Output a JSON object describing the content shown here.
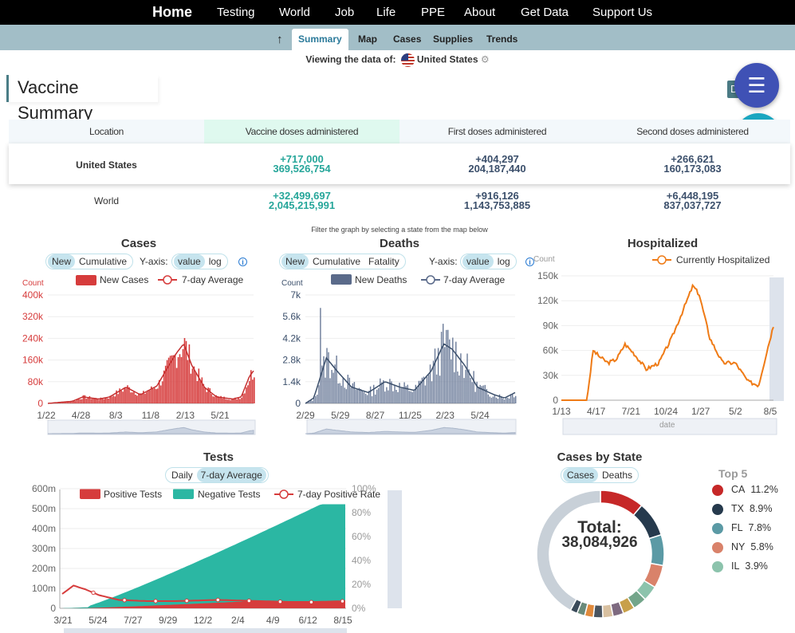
{
  "nav": {
    "home": "Home",
    "items": [
      "Testing",
      "World",
      "Job",
      "Life",
      "PPE",
      "About",
      "Get Data",
      "Support Us"
    ]
  },
  "subnav": {
    "up_icon": "up-arrow-icon",
    "tabs": [
      "Summary",
      "Map",
      "Cases",
      "Supplies",
      "Trends"
    ],
    "active": "Summary"
  },
  "viewing": {
    "label": "Viewing the data of:",
    "country": "United States"
  },
  "vaccine": {
    "title": "Vaccine Summary",
    "download_label": "Download",
    "headers": [
      "Location",
      "Vaccine doses administered",
      "First doses administered",
      "Second doses administered"
    ],
    "rows": [
      {
        "location": "United States",
        "doses_delta": "+717,000",
        "doses_total": "369,526,754",
        "first_delta": "+404,297",
        "first_total": "204,187,440",
        "second_delta": "+266,621",
        "second_total": "160,173,083"
      },
      {
        "location": "World",
        "doses_delta": "+32,499,697",
        "doses_total": "2,045,215,991",
        "first_delta": "+916,126",
        "first_total": "1,143,753,885",
        "second_delta": "+6,448,195",
        "second_total": "837,037,727"
      }
    ]
  },
  "filter_note": "Filter the graph by selecting a state from the map below",
  "colors": {
    "green": "#26a69a",
    "navy": "#3b4f6b",
    "cases": "#d63c3c",
    "deaths": "#5a6a8a",
    "hospital": "#ef7b16",
    "tests_neg": "#2bb7a3"
  },
  "charts": {
    "cases": {
      "title": "Cases",
      "toggles": [
        "New",
        "Cumulative"
      ],
      "yaxis_label": "Y-axis:",
      "scale_toggles": [
        "value",
        "log"
      ],
      "count_label": "Count",
      "legend": [
        "New Cases",
        "7-day Average"
      ],
      "y_ticks": [
        "400k",
        "320k",
        "240k",
        "160k",
        "80k",
        "0"
      ],
      "x_ticks": [
        "1/22",
        "4/28",
        "8/3",
        "11/8",
        "2/13",
        "5/21"
      ]
    },
    "deaths": {
      "title": "Deaths",
      "toggles": [
        "New",
        "Cumulative",
        "Fatality"
      ],
      "yaxis_label": "Y-axis:",
      "scale_toggles": [
        "value",
        "log"
      ],
      "count_label": "Count",
      "legend": [
        "New Deaths",
        "7-day Average"
      ],
      "y_ticks": [
        "7k",
        "5.6k",
        "4.2k",
        "2.8k",
        "1.4k",
        "0"
      ],
      "x_ticks": [
        "2/29",
        "5/29",
        "8/27",
        "11/25",
        "2/23",
        "5/24"
      ]
    },
    "hospitalized": {
      "title": "Hospitalized",
      "count_label": "Count",
      "legend": "Currently Hospitalized",
      "y_ticks": [
        "150k",
        "120k",
        "90k",
        "60k",
        "30k",
        "0"
      ],
      "x_ticks": [
        "1/13",
        "4/17",
        "7/21",
        "10/24",
        "1/27",
        "5/2",
        "8/5"
      ],
      "slider_label": "date"
    },
    "tests": {
      "title": "Tests",
      "toggles": [
        "Daily",
        "7-day Average"
      ],
      "legend": [
        "Positive Tests",
        "Negative Tests",
        "7-day Positive Rate"
      ],
      "y_ticks": [
        "600m",
        "500m",
        "400m",
        "300m",
        "200m",
        "100m",
        "0"
      ],
      "y2_ticks": [
        "100%",
        "80%",
        "60%",
        "40%",
        "20%",
        "0%"
      ],
      "x_ticks": [
        "3/21",
        "5/24",
        "7/27",
        "9/29",
        "12/2",
        "2/4",
        "4/9",
        "6/12",
        "8/15"
      ]
    },
    "by_state": {
      "title": "Cases by State",
      "toggles": [
        "Cases",
        "Deaths"
      ],
      "total_label": "Total:",
      "total_value": "38,084,926",
      "top5_title": "Top 5",
      "top5": [
        {
          "state": "CA",
          "pct": "11.2%",
          "color": "#c62828"
        },
        {
          "state": "TX",
          "pct": "8.9%",
          "color": "#263a4d"
        },
        {
          "state": "FL",
          "pct": "7.8%",
          "color": "#5b9aa5"
        },
        {
          "state": "NY",
          "pct": "5.8%",
          "color": "#d9826a"
        },
        {
          "state": "IL",
          "pct": "3.9%",
          "color": "#8cc3ac"
        }
      ]
    }
  }
}
